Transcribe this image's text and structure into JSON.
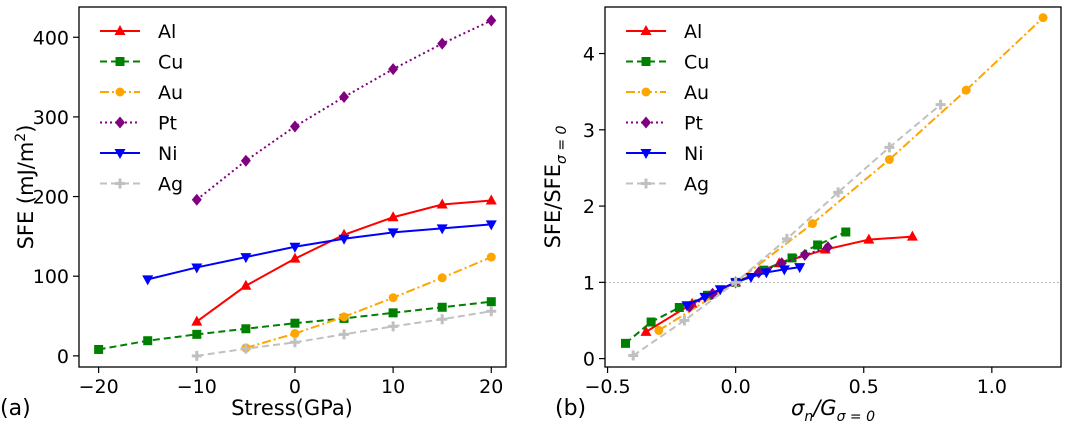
{
  "figure": {
    "panels": [
      {
        "label": "(a)"
      },
      {
        "label": "(b)"
      }
    ]
  },
  "chart_data": [
    {
      "id": "a",
      "type": "line",
      "panel_label": "(a)",
      "xlabel": "Stress(GPa)",
      "ylabel_main": "SFE (mJ/m",
      "ylabel_sup": "2",
      "ylabel_tail": ")",
      "xlim": [
        -22,
        21.5
      ],
      "ylim": [
        -14,
        438
      ],
      "xticks": [
        -20,
        -10,
        0,
        10,
        20
      ],
      "yticks": [
        0,
        100,
        200,
        300,
        400
      ],
      "legend": "top-left",
      "series": [
        {
          "name": "Al",
          "color": "#ff0000",
          "marker": "triangle-up",
          "linestyle": "solid",
          "x": [
            -10,
            -5,
            0,
            5,
            10,
            15,
            20
          ],
          "y": [
            43,
            88,
            122,
            152,
            174,
            190,
            195
          ]
        },
        {
          "name": "Cu",
          "color": "#008000",
          "marker": "square",
          "linestyle": "dashed",
          "x": [
            -20,
            -15,
            -10,
            -5,
            0,
            5,
            10,
            15,
            20
          ],
          "y": [
            8,
            19,
            27,
            34,
            41,
            47,
            54,
            61,
            68
          ]
        },
        {
          "name": "Au",
          "color": "#ffa500",
          "marker": "circle",
          "linestyle": "dashdot",
          "x": [
            -5,
            0,
            5,
            10,
            15,
            20
          ],
          "y": [
            10,
            28,
            49,
            73,
            98,
            124
          ]
        },
        {
          "name": "Pt",
          "color": "#800080",
          "marker": "diamond",
          "linestyle": "dotted",
          "x": [
            -10,
            -5,
            0,
            5,
            10,
            15,
            20
          ],
          "y": [
            196,
            245,
            288,
            325,
            360,
            392,
            421
          ]
        },
        {
          "name": "Ni",
          "color": "#0000ff",
          "marker": "triangle-down",
          "linestyle": "solid",
          "x": [
            -15,
            -10,
            -5,
            0,
            5,
            10,
            15,
            20
          ],
          "y": [
            96,
            111,
            124,
            137,
            147,
            155,
            160,
            165
          ]
        },
        {
          "name": "Ag",
          "color": "#c0c0c0",
          "marker": "plus",
          "linestyle": "dashed",
          "x": [
            -10,
            -5,
            0,
            5,
            10,
            15,
            20
          ],
          "y": [
            0,
            9,
            17,
            27,
            37,
            46,
            56
          ]
        }
      ]
    },
    {
      "id": "b",
      "type": "line",
      "panel_label": "(b)",
      "xlabel_main": "σ",
      "xlabel_sub1": "n",
      "xlabel_mid": "/G",
      "xlabel_sub2": "σ = 0",
      "ylabel_main": "SFE/SFE",
      "ylabel_sub": "σ = 0",
      "xlim": [
        -0.51,
        1.27
      ],
      "ylim": [
        -0.11,
        4.61
      ],
      "xticks": [
        -0.5,
        0.0,
        0.5,
        1.0
      ],
      "xtick_labels": [
        "−0.5",
        "0.0",
        "0.5",
        "1.0"
      ],
      "yticks": [
        0,
        1,
        2,
        3,
        4
      ],
      "reference_line_y": 1,
      "legend": "top-left",
      "series": [
        {
          "name": "Al",
          "color": "#ff0000",
          "marker": "triangle-up",
          "linestyle": "solid",
          "x": [
            -0.35,
            -0.17,
            0.0,
            0.17,
            0.35,
            0.52,
            0.69
          ],
          "y": [
            0.35,
            0.72,
            1.0,
            1.25,
            1.43,
            1.56,
            1.6
          ]
        },
        {
          "name": "Cu",
          "color": "#008000",
          "marker": "square",
          "linestyle": "dashed",
          "x": [
            -0.43,
            -0.33,
            -0.22,
            -0.11,
            0.0,
            0.11,
            0.22,
            0.32,
            0.43
          ],
          "y": [
            0.2,
            0.48,
            0.67,
            0.83,
            1.0,
            1.16,
            1.32,
            1.49,
            1.66
          ]
        },
        {
          "name": "Au",
          "color": "#ffa500",
          "marker": "circle",
          "linestyle": "dashdot",
          "x": [
            -0.3,
            0.0,
            0.3,
            0.6,
            0.9,
            1.2
          ],
          "y": [
            0.37,
            1.0,
            1.77,
            2.61,
            3.52,
            4.47
          ]
        },
        {
          "name": "Pt",
          "color": "#800080",
          "marker": "diamond",
          "linestyle": "dotted",
          "x": [
            -0.18,
            -0.09,
            0.0,
            0.09,
            0.18,
            0.27,
            0.36
          ],
          "y": [
            0.68,
            0.85,
            1.0,
            1.13,
            1.25,
            1.36,
            1.46
          ]
        },
        {
          "name": "Ni",
          "color": "#0000ff",
          "marker": "triangle-down",
          "linestyle": "solid",
          "x": [
            -0.19,
            -0.12,
            -0.06,
            0.0,
            0.06,
            0.12,
            0.19,
            0.25
          ],
          "y": [
            0.7,
            0.81,
            0.91,
            1.0,
            1.07,
            1.13,
            1.17,
            1.2
          ]
        },
        {
          "name": "Ag",
          "color": "#c0c0c0",
          "marker": "plus",
          "linestyle": "dashed",
          "x": [
            -0.4,
            -0.2,
            0.0,
            0.2,
            0.4,
            0.6,
            0.8
          ],
          "y": [
            0.04,
            0.5,
            1.0,
            1.57,
            2.18,
            2.77,
            3.33
          ]
        }
      ]
    }
  ]
}
